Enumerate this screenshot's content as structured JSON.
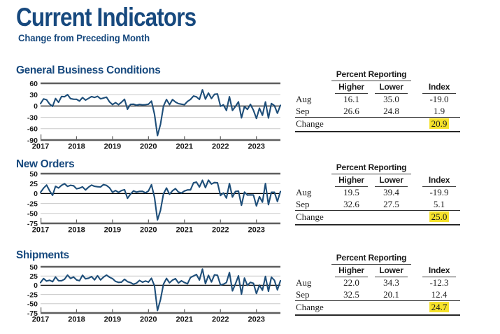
{
  "page": {
    "title": "Current Indicators",
    "subtitle": "Change from Preceding Month"
  },
  "colors": {
    "title_navy": "#17497E",
    "chart_line": "#1E4E79",
    "grid": "#CACACA",
    "axis_frame": "#5E5E5E",
    "zero_line": "#000000",
    "highlight": "#F6E22B"
  },
  "table_labels": {
    "percent_reporting": "Percent Reporting",
    "higher": "Higher",
    "lower": "Lower",
    "index": "Index"
  },
  "sections": [
    {
      "title": "General Business Conditions",
      "table": {
        "rows": [
          {
            "label": "Aug",
            "higher": "16.1",
            "lower": "35.0",
            "index": "-19.0"
          },
          {
            "label": "Sep",
            "higher": "26.6",
            "lower": "24.8",
            "index": "1.9"
          },
          {
            "label": "Change",
            "higher": "",
            "lower": "",
            "index": "20.9"
          }
        ]
      }
    },
    {
      "title": "New Orders",
      "table": {
        "rows": [
          {
            "label": "Aug",
            "higher": "19.5",
            "lower": "39.4",
            "index": "-19.9"
          },
          {
            "label": "Sep",
            "higher": "32.6",
            "lower": "27.5",
            "index": "5.1"
          },
          {
            "label": "Change",
            "higher": "",
            "lower": "",
            "index": "25.0"
          }
        ]
      }
    },
    {
      "title": "Shipments",
      "table": {
        "rows": [
          {
            "label": "Aug",
            "higher": "22.0",
            "lower": "34.3",
            "index": "-12.3"
          },
          {
            "label": "Sep",
            "higher": "32.5",
            "lower": "20.1",
            "index": "12.4"
          },
          {
            "label": "Change",
            "higher": "",
            "lower": "",
            "index": "24.7"
          }
        ]
      }
    }
  ],
  "chart_data": [
    {
      "type": "line",
      "title": "General Business Conditions",
      "x_unit": "month",
      "x_start": "2017-01",
      "x_end": "2023-09",
      "x_tick_labels": [
        "2017",
        "2018",
        "2019",
        "2020",
        "2021",
        "2022",
        "2023"
      ],
      "ylim": [
        -90,
        60
      ],
      "yticks": [
        60,
        30,
        0,
        -30,
        -60,
        -90
      ],
      "grid": true,
      "values": [
        6.5,
        18.7,
        16.4,
        5.2,
        -1.0,
        19.8,
        9.8,
        25.2,
        24.4,
        30.2,
        19.4,
        18.0,
        17.7,
        13.1,
        22.5,
        15.8,
        20.1,
        25.0,
        22.6,
        25.6,
        19.0,
        21.1,
        23.3,
        10.9,
        3.9,
        8.8,
        3.7,
        10.1,
        17.8,
        -8.6,
        4.3,
        4.8,
        2.0,
        4.0,
        2.9,
        3.5,
        4.8,
        12.9,
        -21.5,
        -78.2,
        -48.5,
        -0.2,
        17.2,
        3.7,
        17.0,
        10.5,
        6.3,
        4.9,
        3.5,
        12.1,
        17.4,
        26.3,
        24.3,
        17.4,
        43.0,
        18.3,
        34.3,
        19.8,
        30.9,
        31.9,
        -0.7,
        3.1,
        -11.8,
        24.6,
        -11.6,
        -1.2,
        11.1,
        -31.3,
        -1.5,
        -9.1,
        4.5,
        -11.2,
        -32.9,
        -5.8,
        -24.6,
        10.8,
        -31.8,
        6.6,
        1.1,
        -19.0,
        1.9
      ]
    },
    {
      "type": "line",
      "title": "New Orders",
      "x_unit": "month",
      "x_start": "2017-01",
      "x_end": "2023-09",
      "x_tick_labels": [
        "2017",
        "2018",
        "2019",
        "2020",
        "2021",
        "2022",
        "2023"
      ],
      "ylim": [
        -75,
        50
      ],
      "yticks": [
        50,
        25,
        0,
        -25,
        -50,
        -75
      ],
      "grid": true,
      "values": [
        3.1,
        13.5,
        21.3,
        7.0,
        -4.4,
        18.1,
        13.9,
        20.6,
        24.9,
        18.0,
        20.7,
        19.5,
        11.9,
        13.5,
        16.8,
        9.0,
        16.0,
        21.3,
        18.2,
        17.1,
        16.5,
        22.5,
        20.4,
        14.5,
        3.1,
        7.5,
        3.0,
        7.5,
        9.7,
        -12.0,
        -1.5,
        6.7,
        3.5,
        5.5,
        5.6,
        1.7,
        6.6,
        22.1,
        -9.3,
        -66.3,
        -42.4,
        -0.6,
        13.9,
        -1.7,
        7.1,
        12.3,
        3.7,
        1.4,
        6.6,
        9.1,
        9.1,
        26.9,
        28.9,
        16.3,
        33.2,
        14.8,
        33.7,
        23.9,
        27.6,
        27.1,
        -5.0,
        1.4,
        -11.2,
        25.1,
        -8.8,
        5.3,
        6.2,
        -29.6,
        3.7,
        -3.8,
        -3.3,
        -3.6,
        -31.1,
        -7.8,
        -21.7,
        25.1,
        -28.0,
        3.1,
        3.3,
        -19.9,
        5.1
      ]
    },
    {
      "type": "line",
      "title": "Shipments",
      "x_unit": "month",
      "x_start": "2017-01",
      "x_end": "2023-09",
      "x_tick_labels": [
        "2017",
        "2018",
        "2019",
        "2020",
        "2021",
        "2022",
        "2023"
      ],
      "ylim": [
        -75,
        50
      ],
      "yticks": [
        50,
        25,
        0,
        -25,
        -50,
        -75
      ],
      "grid": true,
      "values": [
        7.3,
        18.2,
        11.3,
        13.7,
        9.6,
        22.3,
        12.4,
        12.4,
        16.2,
        27.5,
        18.4,
        22.4,
        14.4,
        12.4,
        27.0,
        17.5,
        19.1,
        23.5,
        14.6,
        25.7,
        14.3,
        22.0,
        27.6,
        21.8,
        17.9,
        10.4,
        7.7,
        8.6,
        16.3,
        9.8,
        7.2,
        2.8,
        5.8,
        13.0,
        8.3,
        11.5,
        8.6,
        18.9,
        -1.7,
        -68.1,
        -39.0,
        3.3,
        18.5,
        6.7,
        14.1,
        17.8,
        6.3,
        12.1,
        7.3,
        4.0,
        21.1,
        25.0,
        29.1,
        14.2,
        43.8,
        4.4,
        26.9,
        8.9,
        28.2,
        27.1,
        1.0,
        2.9,
        7.4,
        34.5,
        -15.4,
        4.0,
        25.3,
        -24.1,
        19.6,
        -0.3,
        8.0,
        5.3,
        -22.4,
        0.1,
        -13.4,
        23.9,
        -16.4,
        22.0,
        13.4,
        -12.3,
        12.4
      ]
    }
  ]
}
